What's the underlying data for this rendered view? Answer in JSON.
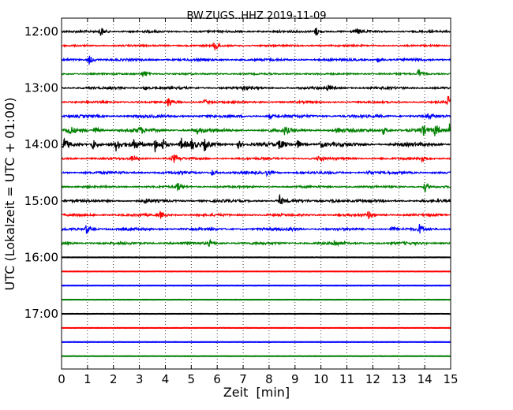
{
  "chart_data": {
    "type": "line",
    "title": "BW.ZUGS..HHZ 2019-11-09",
    "xlabel": "Zeit  [min]",
    "ylabel": "UTC (Lokalzeit = UTC + 01:00)",
    "xlim": [
      0,
      15
    ],
    "x_ticks": [
      "0",
      "1",
      "2",
      "3",
      "4",
      "5",
      "6",
      "7",
      "8",
      "9",
      "10",
      "11",
      "12",
      "13",
      "14",
      "15"
    ],
    "y_ticks": [
      {
        "label": "12:00",
        "row": 0
      },
      {
        "label": "13:00",
        "row": 4
      },
      {
        "label": "14:00",
        "row": 8
      },
      {
        "label": "15:00",
        "row": 12
      },
      {
        "label": "16:00",
        "row": 16
      },
      {
        "label": "17:00",
        "row": 20
      }
    ],
    "grid": "vertical dotted",
    "color_cycle": [
      "#000000",
      "#ff0000",
      "#0000ff",
      "#008000"
    ],
    "series": [
      {
        "start": "12:00",
        "noise": 0.3,
        "bursts": [
          [
            1.5,
            0.9
          ],
          [
            9.8,
            0.9
          ],
          [
            11.4,
            0.5
          ]
        ]
      },
      {
        "start": "12:15",
        "noise": 0.18,
        "bursts": [
          [
            5.9,
            1.1
          ]
        ]
      },
      {
        "start": "12:30",
        "noise": 0.35,
        "bursts": [
          [
            1.05,
            0.9
          ],
          [
            12.2,
            0.4
          ]
        ]
      },
      {
        "start": "12:45",
        "noise": 0.15,
        "bursts": [
          [
            3.15,
            0.8
          ],
          [
            13.75,
            0.8
          ]
        ]
      },
      {
        "start": "13:00",
        "noise": 0.35,
        "bursts": [
          [
            3.2,
            0.35
          ],
          [
            7.0,
            0.4
          ],
          [
            10.25,
            0.5
          ]
        ]
      },
      {
        "start": "13:15",
        "noise": 0.25,
        "bursts": [
          [
            4.1,
            0.9
          ],
          [
            5.5,
            0.5
          ],
          [
            14.9,
            1.1
          ]
        ]
      },
      {
        "start": "13:30",
        "noise": 0.45,
        "bursts": [
          [
            8.0,
            0.4
          ],
          [
            14.1,
            0.5
          ]
        ]
      },
      {
        "start": "13:45",
        "noise": 0.6,
        "bursts": [
          [
            0.3,
            0.8
          ],
          [
            1.3,
            0.6
          ],
          [
            3.0,
            0.6
          ],
          [
            5.2,
            0.6
          ],
          [
            8.6,
            0.6
          ],
          [
            10.6,
            0.6
          ],
          [
            12.4,
            0.7
          ],
          [
            13.9,
            1.0
          ],
          [
            14.4,
            1.1
          ],
          [
            14.95,
            1.1
          ]
        ]
      },
      {
        "start": "14:00",
        "noise": 0.7,
        "bursts": [
          [
            0.1,
            0.9
          ],
          [
            1.2,
            1.0
          ],
          [
            2.1,
            1.0
          ],
          [
            2.8,
            1.0
          ],
          [
            3.6,
            1.3
          ],
          [
            3.9,
            1.1
          ],
          [
            4.6,
            1.2
          ],
          [
            5.0,
            0.9
          ],
          [
            5.5,
            0.9
          ],
          [
            6.8,
            0.8
          ],
          [
            8.4,
            0.9
          ],
          [
            9.1,
            0.7
          ],
          [
            10.0,
            0.5
          ]
        ]
      },
      {
        "start": "14:15",
        "noise": 0.3,
        "bursts": [
          [
            2.7,
            0.5
          ],
          [
            4.3,
            0.9
          ],
          [
            9.9,
            0.6
          ],
          [
            13.9,
            0.8
          ]
        ]
      },
      {
        "start": "14:30",
        "noise": 0.4,
        "bursts": [
          [
            5.8,
            0.5
          ],
          [
            7.9,
            0.4
          ],
          [
            11.8,
            0.5
          ]
        ]
      },
      {
        "start": "14:45",
        "noise": 0.25,
        "bursts": [
          [
            4.45,
            0.9
          ],
          [
            14.0,
            0.9
          ]
        ]
      },
      {
        "start": "15:00",
        "noise": 0.4,
        "bursts": [
          [
            3.2,
            0.4
          ],
          [
            8.4,
            0.9
          ],
          [
            10.4,
            0.5
          ]
        ]
      },
      {
        "start": "15:15",
        "noise": 0.35,
        "bursts": [
          [
            3.8,
            0.6
          ],
          [
            11.8,
            0.7
          ]
        ]
      },
      {
        "start": "15:30",
        "noise": 0.4,
        "bursts": [
          [
            0.95,
            0.9
          ],
          [
            8.8,
            0.4
          ],
          [
            12.7,
            0.5
          ],
          [
            13.8,
            0.8
          ]
        ]
      },
      {
        "start": "15:45",
        "noise": 0.4,
        "bursts": [
          [
            5.7,
            0.6
          ],
          [
            10.5,
            0.6
          ]
        ]
      },
      {
        "start": "16:00",
        "noise": 0.0,
        "bursts": []
      },
      {
        "start": "16:15",
        "noise": 0.0,
        "bursts": []
      },
      {
        "start": "16:30",
        "noise": 0.0,
        "bursts": []
      },
      {
        "start": "16:45",
        "noise": 0.0,
        "bursts": []
      },
      {
        "start": "17:00",
        "noise": 0.0,
        "bursts": []
      },
      {
        "start": "17:15",
        "noise": 0.0,
        "bursts": []
      },
      {
        "start": "17:30",
        "noise": 0.0,
        "bursts": []
      },
      {
        "start": "17:45",
        "noise": 0.0,
        "bursts": []
      }
    ]
  }
}
